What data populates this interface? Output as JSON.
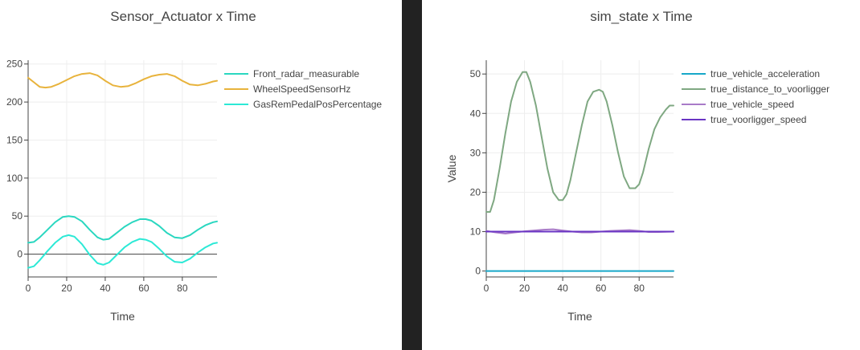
{
  "chart_data": [
    {
      "type": "line",
      "title": "Sensor_Actuator x Time",
      "xlabel": "Time",
      "ylabel": "",
      "xlim": [
        0,
        98
      ],
      "ylim": [
        -30,
        255
      ],
      "xticks": [
        0,
        20,
        40,
        60,
        80
      ],
      "yticks": [
        0,
        50,
        100,
        150,
        200,
        250
      ],
      "grid": true,
      "zeroline": true,
      "legend_position": "right",
      "series": [
        {
          "name": "Front_radar_measurable",
          "color": "#2ad7c0",
          "x": [
            0,
            3,
            6,
            10,
            14,
            18,
            21,
            24,
            28,
            32,
            36,
            39,
            42,
            46,
            50,
            54,
            58,
            61,
            64,
            68,
            72,
            76,
            80,
            84,
            88,
            92,
            96,
            98
          ],
          "y": [
            15,
            16,
            22,
            32,
            42,
            49,
            50,
            49,
            43,
            32,
            22,
            19,
            20,
            28,
            36,
            42,
            46,
            46,
            44,
            37,
            28,
            22,
            21,
            25,
            32,
            38,
            42,
            43
          ]
        },
        {
          "name": "WheelSpeedSensorHz",
          "color": "#e8b33c",
          "x": [
            0,
            3,
            6,
            9,
            12,
            16,
            20,
            24,
            28,
            32,
            36,
            40,
            44,
            48,
            52,
            56,
            60,
            64,
            68,
            72,
            76,
            80,
            84,
            88,
            92,
            96,
            98
          ],
          "y": [
            232,
            226,
            220,
            219,
            220,
            224,
            229,
            234,
            237,
            238,
            235,
            228,
            222,
            220,
            221,
            225,
            230,
            234,
            236,
            237,
            234,
            228,
            223,
            222,
            224,
            227,
            228
          ]
        },
        {
          "name": "GasRemPedalPosPercentage",
          "color": "#2ce9d6",
          "x": [
            0,
            3,
            6,
            10,
            14,
            18,
            21,
            24,
            28,
            32,
            36,
            39,
            42,
            46,
            50,
            54,
            58,
            61,
            64,
            68,
            72,
            76,
            80,
            84,
            88,
            92,
            96,
            98
          ],
          "y": [
            -18,
            -16,
            -8,
            4,
            15,
            23,
            25,
            23,
            13,
            -1,
            -12,
            -14,
            -11,
            -1,
            9,
            16,
            20,
            19,
            16,
            7,
            -3,
            -10,
            -11,
            -6,
            2,
            9,
            14,
            15
          ]
        }
      ]
    },
    {
      "type": "line",
      "title": "sim_state x Time",
      "xlabel": "Time",
      "ylabel": "Value",
      "xlim": [
        0,
        98
      ],
      "ylim": [
        -1.5,
        53.5
      ],
      "xticks": [
        0,
        20,
        40,
        60,
        80
      ],
      "yticks": [
        0,
        10,
        20,
        30,
        40,
        50
      ],
      "grid": true,
      "zeroline": false,
      "legend_position": "right",
      "series": [
        {
          "name": "true_vehicle_acceleration",
          "color": "#17a8c9",
          "x": [
            0,
            98
          ],
          "y": [
            0,
            0
          ]
        },
        {
          "name": "true_distance_to_voorligger",
          "color": "#7fa882",
          "x": [
            0,
            2,
            4,
            7,
            10,
            13,
            16,
            19,
            21,
            23,
            26,
            29,
            32,
            35,
            38,
            40,
            42,
            44,
            47,
            50,
            53,
            56,
            59,
            61,
            63,
            66,
            69,
            72,
            75,
            78,
            80,
            82,
            85,
            88,
            91,
            94,
            96,
            98
          ],
          "y": [
            15,
            15,
            18,
            26,
            35,
            43,
            48,
            50.5,
            50.5,
            48,
            42,
            34,
            26,
            20,
            18,
            18,
            19.5,
            23,
            30,
            37,
            43,
            45.5,
            46,
            45.5,
            43,
            37,
            30,
            24,
            21,
            21,
            22,
            25,
            31,
            36,
            39,
            41,
            42,
            42
          ]
        },
        {
          "name": "true_vehicle_speed",
          "color": "#a97bc8",
          "x": [
            0,
            5,
            10,
            15,
            20,
            25,
            30,
            35,
            40,
            45,
            50,
            55,
            60,
            65,
            70,
            75,
            80,
            85,
            90,
            98
          ],
          "y": [
            10.2,
            9.8,
            9.5,
            9.8,
            10.1,
            10.3,
            10.5,
            10.6,
            10.3,
            10,
            9.8,
            9.8,
            10,
            10.2,
            10.3,
            10.4,
            10.2,
            9.9,
            9.9,
            10
          ]
        },
        {
          "name": "true_voorligger_speed",
          "color": "#6a35c4",
          "x": [
            0,
            98
          ],
          "y": [
            10,
            10
          ]
        }
      ]
    }
  ]
}
